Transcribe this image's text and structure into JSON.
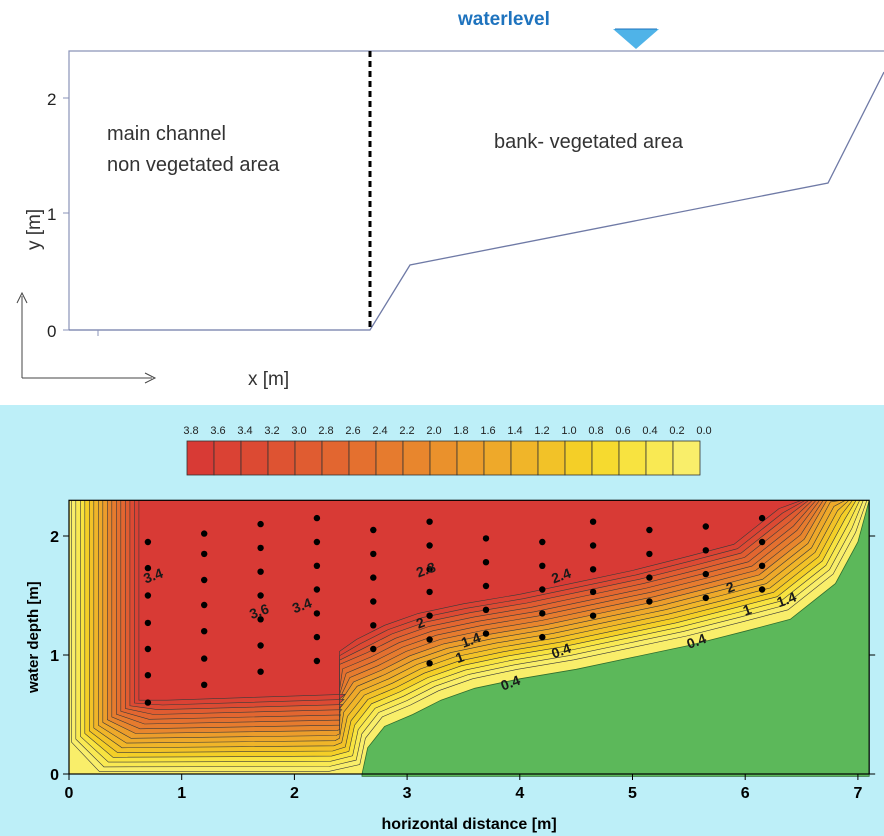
{
  "top": {
    "waterlevel_label": "waterlevel",
    "main_channel_line1": "main channel",
    "main_channel_line2": "non vegetated area",
    "bank_label": "bank- vegetated area",
    "y_axis_label": "y [m]",
    "x_axis_label": "x [m]",
    "y_ticks": [
      "0",
      "1",
      "2"
    ],
    "colors": {
      "frame": "#8a93b8",
      "waterlevel_text": "#1e73be",
      "waterlevel_marker": "#4fb3e8",
      "divider": "#000000"
    }
  },
  "colorbar": {
    "labels": [
      "3.8",
      "3.6",
      "3.4",
      "3.2",
      "3.0",
      "2.8",
      "2.6",
      "2.4",
      "2.2",
      "2.0",
      "1.8",
      "1.6",
      "1.4",
      "1.2",
      "1.0",
      "0.8",
      "0.6",
      "0.4",
      "0.2",
      "0.0"
    ],
    "colors": [
      "#d83a35",
      "#da4234",
      "#dc4a33",
      "#de5332",
      "#e05c31",
      "#e26630",
      "#e4702f",
      "#e67b2e",
      "#e8862d",
      "#ea912c",
      "#ec9d2b",
      "#eea92a",
      "#f0b529",
      "#f2c228",
      "#f4cf27",
      "#f6da2f",
      "#f8e340",
      "#f9e953",
      "#f9ee6a"
    ]
  },
  "chart_data": {
    "type": "contour",
    "xlabel": "horizontal distance [m]",
    "ylabel": "water depth [m]",
    "xlim": [
      0,
      7.1
    ],
    "ylim": [
      0,
      2.3
    ],
    "x_ticks": [
      "0",
      "1",
      "2",
      "3",
      "4",
      "5",
      "6",
      "7"
    ],
    "y_ticks": [
      "0",
      "1",
      "2"
    ],
    "contour_labels": [
      {
        "text": "3.4",
        "x": 0.68,
        "y": 1.6
      },
      {
        "text": "3.6",
        "x": 1.62,
        "y": 1.3
      },
      {
        "text": "3.4",
        "x": 2.0,
        "y": 1.35
      },
      {
        "text": "2.8",
        "x": 3.1,
        "y": 1.65
      },
      {
        "text": "2",
        "x": 3.1,
        "y": 1.22
      },
      {
        "text": "1.4",
        "x": 3.5,
        "y": 1.06
      },
      {
        "text": "1",
        "x": 3.45,
        "y": 0.93
      },
      {
        "text": "0.4",
        "x": 3.85,
        "y": 0.7
      },
      {
        "text": "2.4",
        "x": 4.3,
        "y": 1.6
      },
      {
        "text": "0.4",
        "x": 4.3,
        "y": 0.97
      },
      {
        "text": "0.4",
        "x": 5.5,
        "y": 1.05
      },
      {
        "text": "2",
        "x": 5.85,
        "y": 1.52
      },
      {
        "text": "1",
        "x": 6.0,
        "y": 1.33
      },
      {
        "text": "1.4",
        "x": 6.3,
        "y": 1.4
      }
    ],
    "measurement_points": [
      {
        "x": 0.7,
        "y": [
          1.95,
          1.73,
          1.5,
          1.27,
          1.05,
          0.83,
          0.6
        ]
      },
      {
        "x": 1.2,
        "y": [
          2.02,
          1.85,
          1.63,
          1.42,
          1.2,
          0.97,
          0.75
        ]
      },
      {
        "x": 1.7,
        "y": [
          2.1,
          1.9,
          1.7,
          1.5,
          1.3,
          1.08,
          0.86
        ]
      },
      {
        "x": 2.2,
        "y": [
          2.15,
          1.95,
          1.75,
          1.55,
          1.35,
          1.15,
          0.95
        ]
      },
      {
        "x": 2.7,
        "y": [
          2.05,
          1.85,
          1.65,
          1.45,
          1.25,
          1.05
        ]
      },
      {
        "x": 3.2,
        "y": [
          2.12,
          1.92,
          1.72,
          1.53,
          1.33,
          1.13,
          0.93
        ]
      },
      {
        "x": 3.7,
        "y": [
          1.98,
          1.78,
          1.58,
          1.38,
          1.18
        ]
      },
      {
        "x": 4.2,
        "y": [
          1.95,
          1.75,
          1.55,
          1.35,
          1.15
        ]
      },
      {
        "x": 4.65,
        "y": [
          2.12,
          1.92,
          1.72,
          1.53,
          1.33
        ]
      },
      {
        "x": 5.15,
        "y": [
          2.05,
          1.85,
          1.65,
          1.45
        ]
      },
      {
        "x": 5.65,
        "y": [
          2.08,
          1.88,
          1.68,
          1.48
        ]
      },
      {
        "x": 6.15,
        "y": [
          2.15,
          1.95,
          1.75,
          1.55
        ]
      }
    ],
    "colors": {
      "background": "#bdeff8",
      "vegetation": "#5cb85a",
      "high": "#d83a35",
      "low": "#f9ee6a",
      "contour_line": "#444444",
      "point": "#000000"
    }
  }
}
